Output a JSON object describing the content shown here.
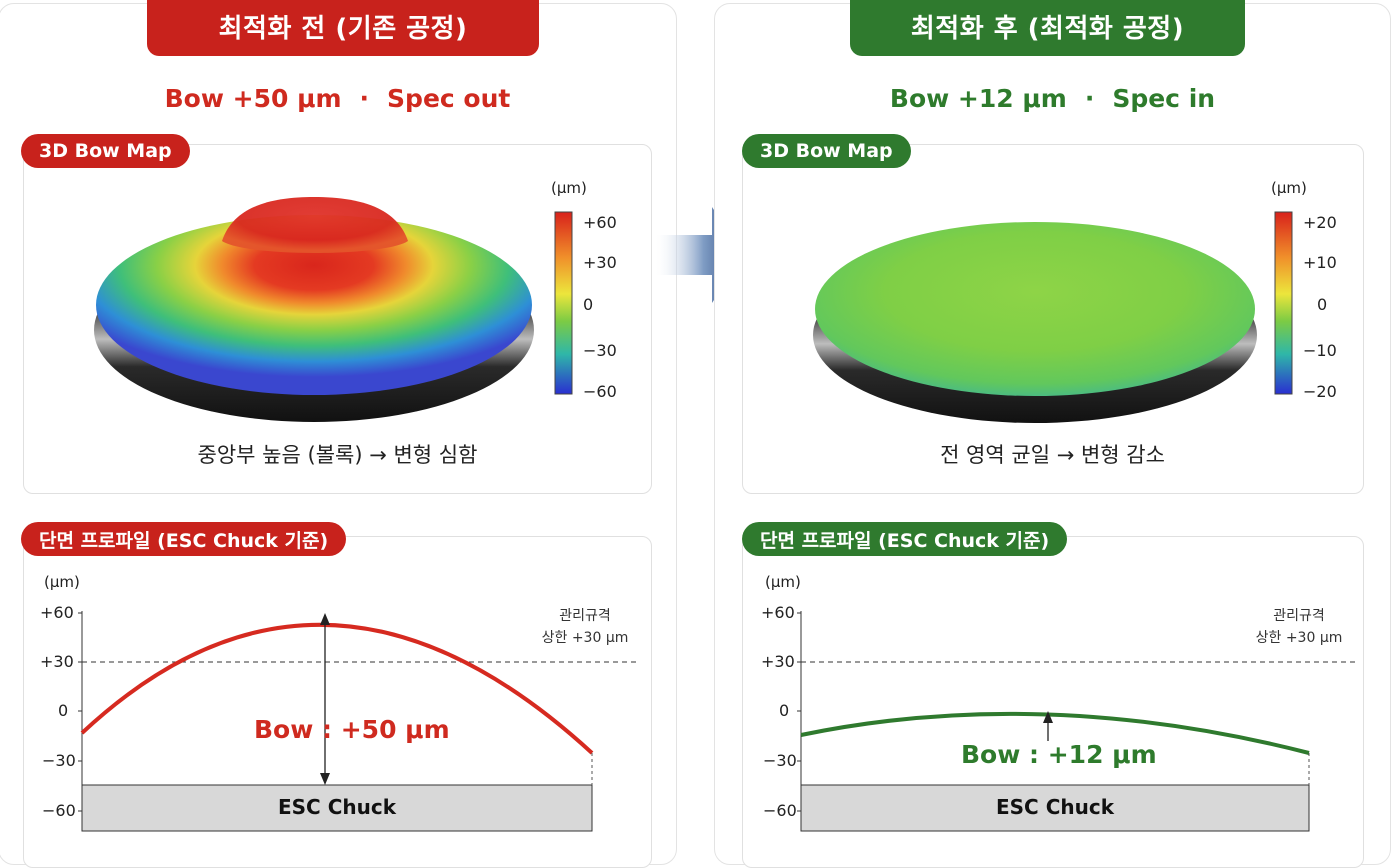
{
  "before": {
    "title": "최적화 전 (기존 공정)",
    "bow_value": "Bow +50 μm",
    "separator": "·",
    "spec_status": "Spec out",
    "map_label": "3D Bow Map",
    "map_unit": "(μm)",
    "colorbar_ticks": [
      "+60",
      "+30",
      "0",
      "−30",
      "−60"
    ],
    "caption": "중앙부 높음 (볼록)  →  변형 심함",
    "profile_label": "단면 프로파일 (ESC Chuck 기준)",
    "profile_unit": "(μm)",
    "profile_ticks": [
      "+60",
      "+30",
      "0",
      "−30",
      "−60"
    ],
    "limit_label_1": "관리규격",
    "limit_label_2": "상한 +30 μm",
    "bow_annotation": "Bow : +50 μm",
    "chuck_label": "ESC Chuck"
  },
  "after": {
    "title": "최적화 후 (최적화 공정)",
    "bow_value": "Bow +12 μm",
    "separator": "·",
    "spec_status": "Spec in",
    "map_label": "3D Bow Map",
    "map_unit": "(μm)",
    "colorbar_ticks": [
      "+20",
      "+10",
      "0",
      "−10",
      "−20"
    ],
    "caption": "전 영역 균일  →  변형 감소",
    "profile_label": "단면 프로파일 (ESC Chuck 기준)",
    "profile_unit": "(μm)",
    "profile_ticks": [
      "+60",
      "+30",
      "0",
      "−30",
      "−60"
    ],
    "limit_label_1": "관리규격",
    "limit_label_2": "상한 +30 μm",
    "bow_annotation": "Bow : +12 μm",
    "chuck_label": "ESC Chuck"
  },
  "colors": {
    "before_accent": "#c8221c",
    "after_accent": "#2f7a2e",
    "arrow": "#27457a"
  }
}
